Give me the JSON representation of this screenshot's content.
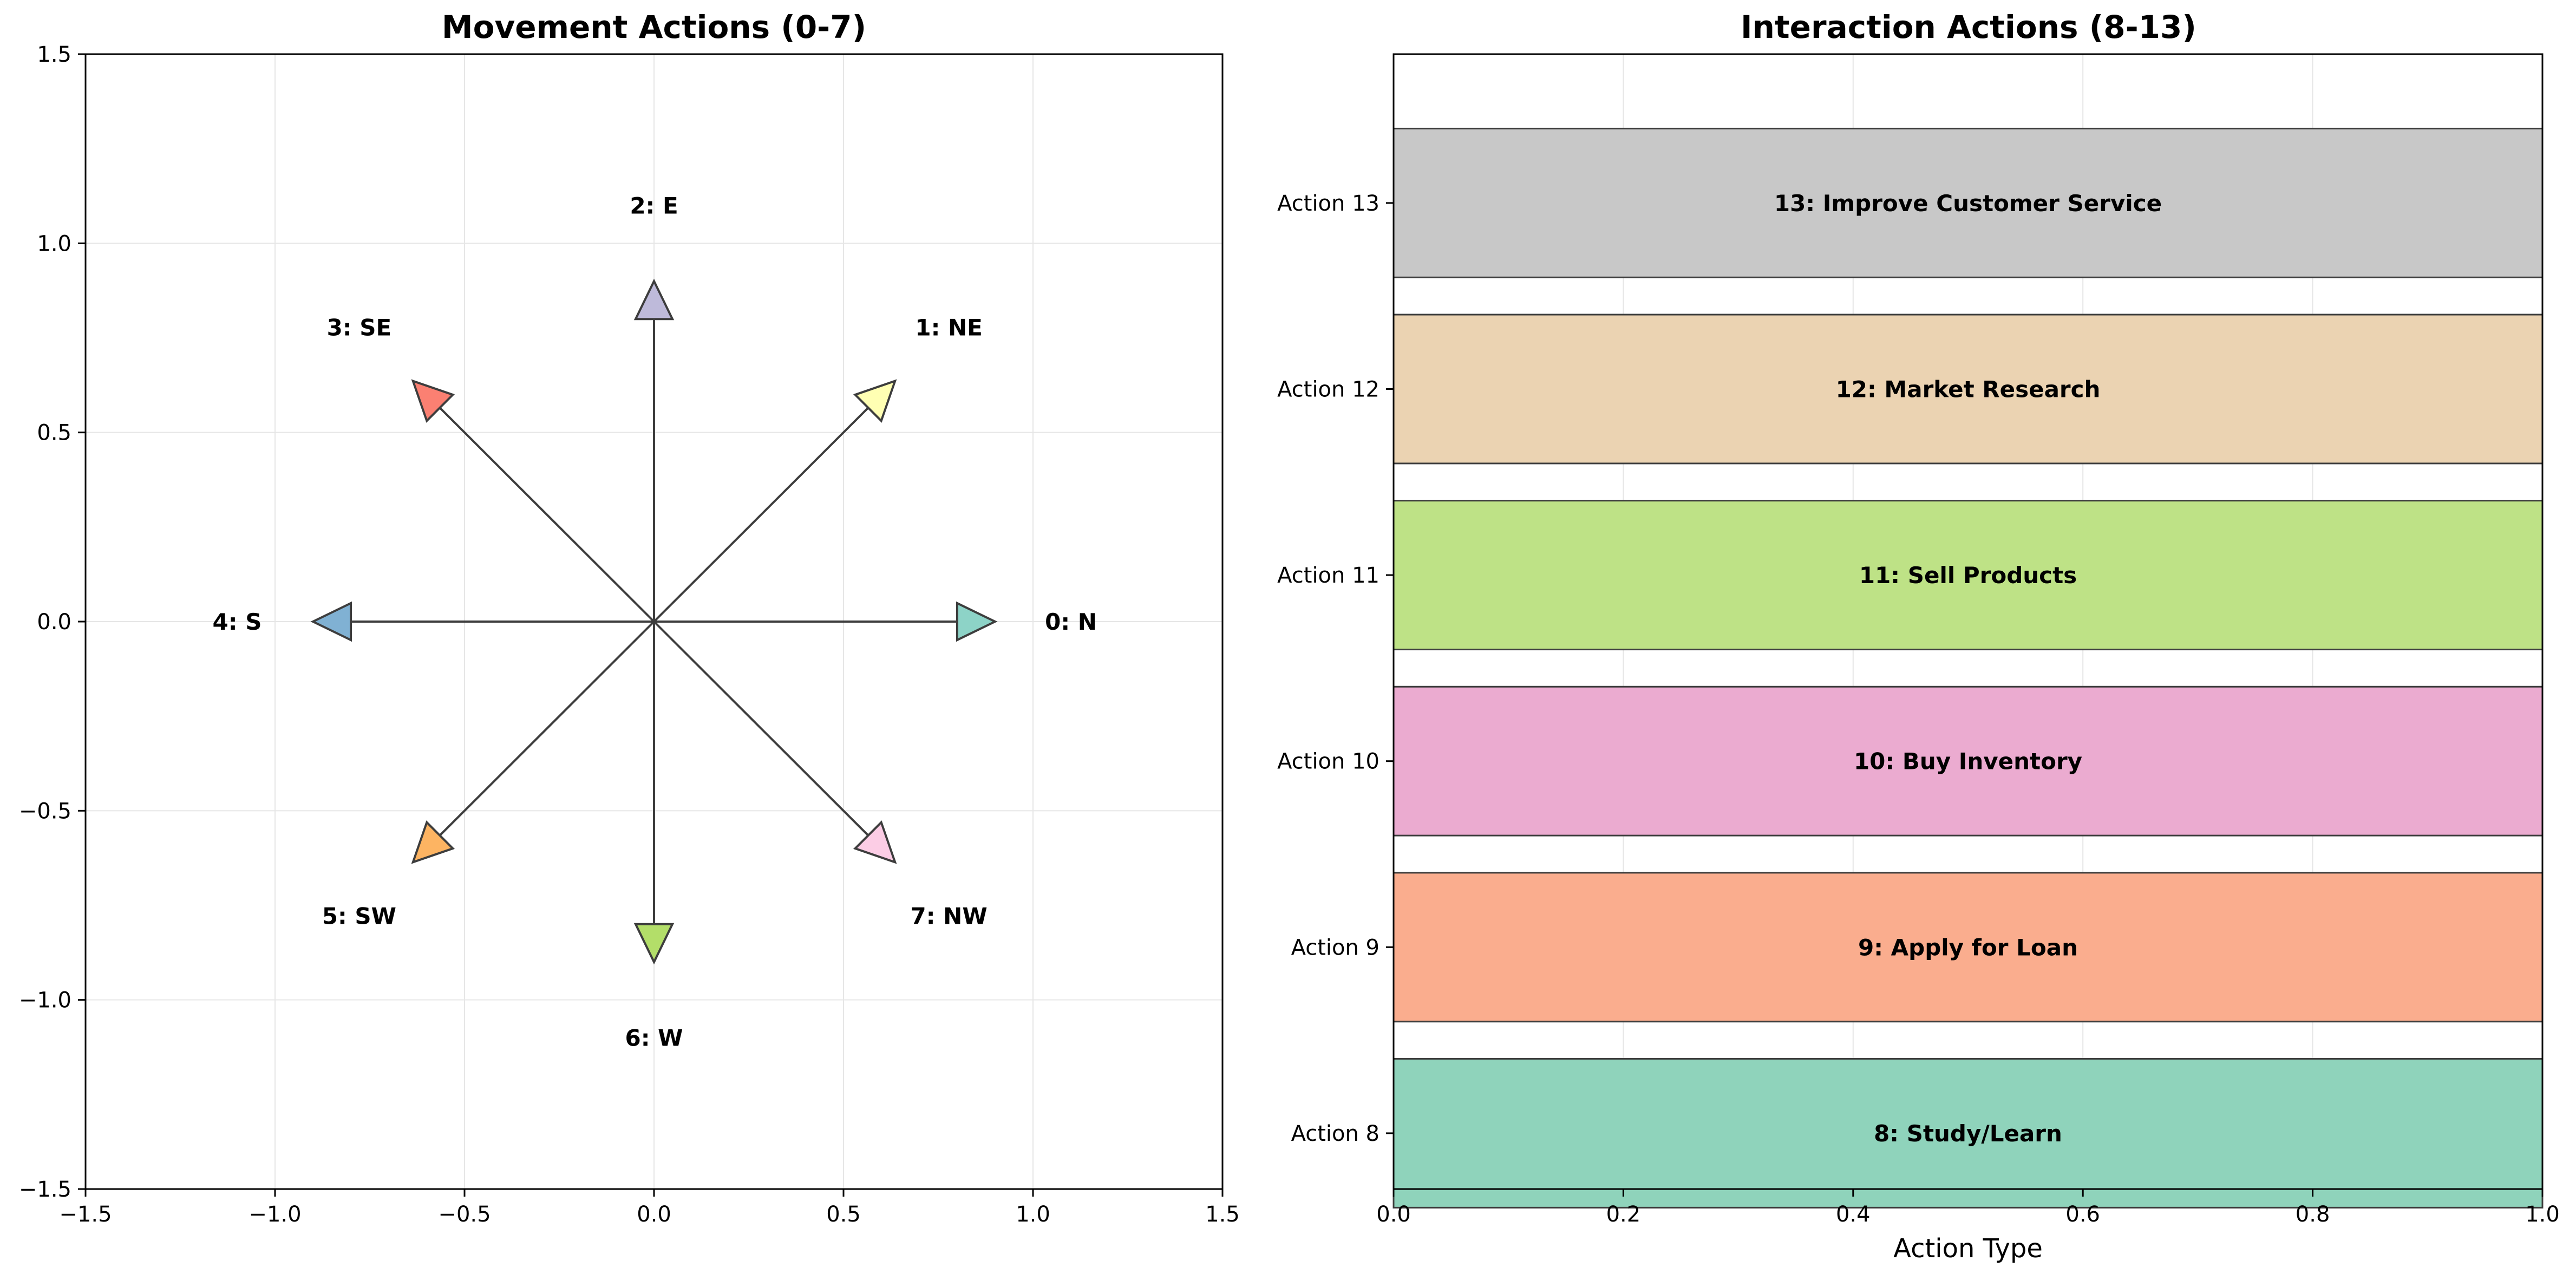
{
  "chart_data": [
    {
      "type": "quiver",
      "title": "Movement Actions (0-7)",
      "xlim": [
        -1.5,
        1.5
      ],
      "ylim": [
        -1.5,
        1.5
      ],
      "xticks": [
        -1.5,
        -1.0,
        -0.5,
        0.0,
        0.5,
        1.0,
        1.5
      ],
      "yticks": [
        -1.5,
        -1.0,
        -0.5,
        0.0,
        0.5,
        1.0,
        1.5
      ],
      "xtick_labels": [
        "−1.5",
        "−1.0",
        "−0.5",
        "0.0",
        "0.5",
        "1.0",
        "1.5"
      ],
      "ytick_labels": [
        "−1.5",
        "−1.0",
        "−0.5",
        "0.0",
        "0.5",
        "1.0",
        "1.5"
      ],
      "grid": true,
      "arrows": [
        {
          "label": "0: N",
          "dx": 0.9,
          "dy": 0.0,
          "label_x": 1.1,
          "label_y": 0.0,
          "color": "#8dd3c7"
        },
        {
          "label": "1: NE",
          "dx": 0.636,
          "dy": 0.636,
          "label_x": 0.778,
          "label_y": 0.778,
          "color": "#ffffb3"
        },
        {
          "label": "2: E",
          "dx": 0.0,
          "dy": 0.9,
          "label_x": 0.0,
          "label_y": 1.1,
          "color": "#bebada"
        },
        {
          "label": "3: SE",
          "dx": -0.636,
          "dy": 0.636,
          "label_x": -0.778,
          "label_y": 0.778,
          "color": "#fb8072"
        },
        {
          "label": "4: S",
          "dx": -0.9,
          "dy": 0.0,
          "label_x": -1.1,
          "label_y": 0.0,
          "color": "#80b1d3"
        },
        {
          "label": "5: SW",
          "dx": -0.636,
          "dy": -0.636,
          "label_x": -0.778,
          "label_y": -0.778,
          "color": "#fdb462"
        },
        {
          "label": "6: W",
          "dx": 0.0,
          "dy": -0.9,
          "label_x": 0.0,
          "label_y": -1.1,
          "color": "#b3de69"
        },
        {
          "label": "7: NW",
          "dx": 0.636,
          "dy": -0.636,
          "label_x": 0.778,
          "label_y": -0.778,
          "color": "#fccde5"
        }
      ]
    },
    {
      "type": "bar",
      "orientation": "horizontal",
      "title": "Interaction Actions (8-13)",
      "xlabel": "Action Type",
      "xlim": [
        0.0,
        1.0
      ],
      "xticks": [
        0.0,
        0.2,
        0.4,
        0.6,
        0.8,
        1.0
      ],
      "xtick_labels": [
        "0.0",
        "0.2",
        "0.4",
        "0.6",
        "0.8",
        "1.0"
      ],
      "ylim": [
        -0.3,
        5.8
      ],
      "bar_height": 0.8,
      "grid": true,
      "categories": [
        "Action 8",
        "Action 9",
        "Action 10",
        "Action 11",
        "Action 12",
        "Action 13"
      ],
      "values": [
        1,
        1,
        1,
        1,
        1,
        1
      ],
      "bar_labels": [
        "8: Study/Learn",
        "9: Apply for Loan",
        "10: Buy Inventory",
        "11: Sell Products",
        "12: Market Research",
        "13: Improve Customer Service"
      ],
      "colors": [
        "#8fd3bb",
        "#faad8e",
        "#ebabd0",
        "#bee286",
        "#ebd3b2",
        "#c8c8c8"
      ]
    }
  ]
}
